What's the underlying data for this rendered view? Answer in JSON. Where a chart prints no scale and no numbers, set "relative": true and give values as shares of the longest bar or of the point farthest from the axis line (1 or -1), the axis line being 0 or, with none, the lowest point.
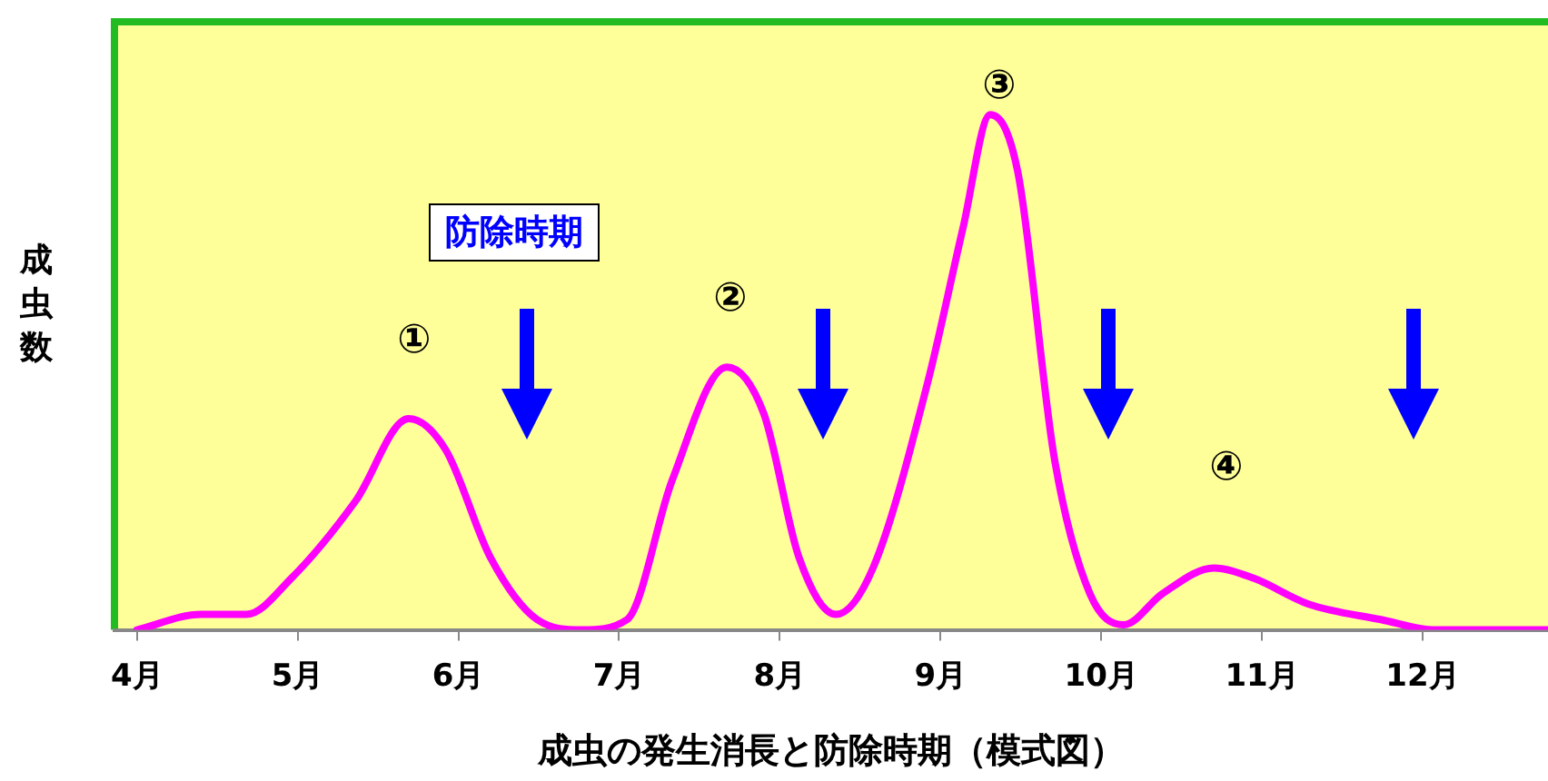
{
  "chart_data": {
    "type": "line",
    "relative": true,
    "xlabel": "成虫の発生消長と防除時期（模式図）",
    "ylabel": "成虫数",
    "x": [
      4.0,
      4.4,
      4.68,
      4.96,
      5.36,
      5.69,
      5.92,
      6.2,
      6.49,
      6.77,
      7.05,
      7.33,
      7.67,
      7.9,
      8.12,
      8.35,
      8.58,
      8.92,
      9.14,
      9.31,
      9.48,
      9.71,
      9.93,
      10.14,
      10.38,
      10.7,
      10.95,
      11.29,
      11.74,
      12.08,
      12.78
    ],
    "series": [
      {
        "color": "#ff00ff",
        "values": [
          0,
          0.03,
          0.03,
          0.1,
          0.25,
          0.41,
          0.35,
          0.14,
          0.02,
          0,
          0.02,
          0.29,
          0.51,
          0.42,
          0.14,
          0.03,
          0.12,
          0.48,
          0.78,
          1,
          0.89,
          0.33,
          0.07,
          0.01,
          0.07,
          0.12,
          0.1,
          0.05,
          0.02,
          0,
          0
        ]
      }
    ],
    "xlim": [
      3.86,
      12.78
    ],
    "xticks": [
      {
        "value": 4,
        "label": "4月"
      },
      {
        "value": 5,
        "label": "5月"
      },
      {
        "value": 6,
        "label": "6月"
      },
      {
        "value": 7,
        "label": "7月"
      },
      {
        "value": 8,
        "label": "8月"
      },
      {
        "value": 9,
        "label": "9月"
      },
      {
        "value": 10,
        "label": "10月"
      },
      {
        "value": 11,
        "label": "11月"
      },
      {
        "value": 12,
        "label": "12月"
      }
    ],
    "annotations": [
      "①",
      "②",
      "③",
      "④",
      "防除時期"
    ],
    "grid": false,
    "legend": false,
    "marker": "none",
    "line_style": "solid"
  }
}
